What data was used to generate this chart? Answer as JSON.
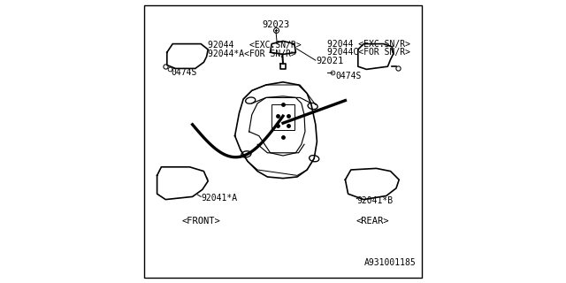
{
  "bg_color": "#ffffff",
  "border_color": "#000000",
  "diagram_id": "A931001185",
  "font_size_small": 7.5,
  "font_size_label": 7.0,
  "line_color": "#000000",
  "line_width": 1.2,
  "label_92023": "92023",
  "label_92021": "92021",
  "label_92044_l1": "92044   <EXC.SN/R>",
  "label_92044_l2": "92044*A<FOR SN/R>",
  "label_92044_r1": "92044 <EXC.SN/R>",
  "label_92044_r2": "92044C<FOR SN/R>",
  "label_0474s": "0474S",
  "label_92041a": "92041*A",
  "label_92041b": "92041*B",
  "label_front": "<FRONT>",
  "label_rear": "<REAR>"
}
